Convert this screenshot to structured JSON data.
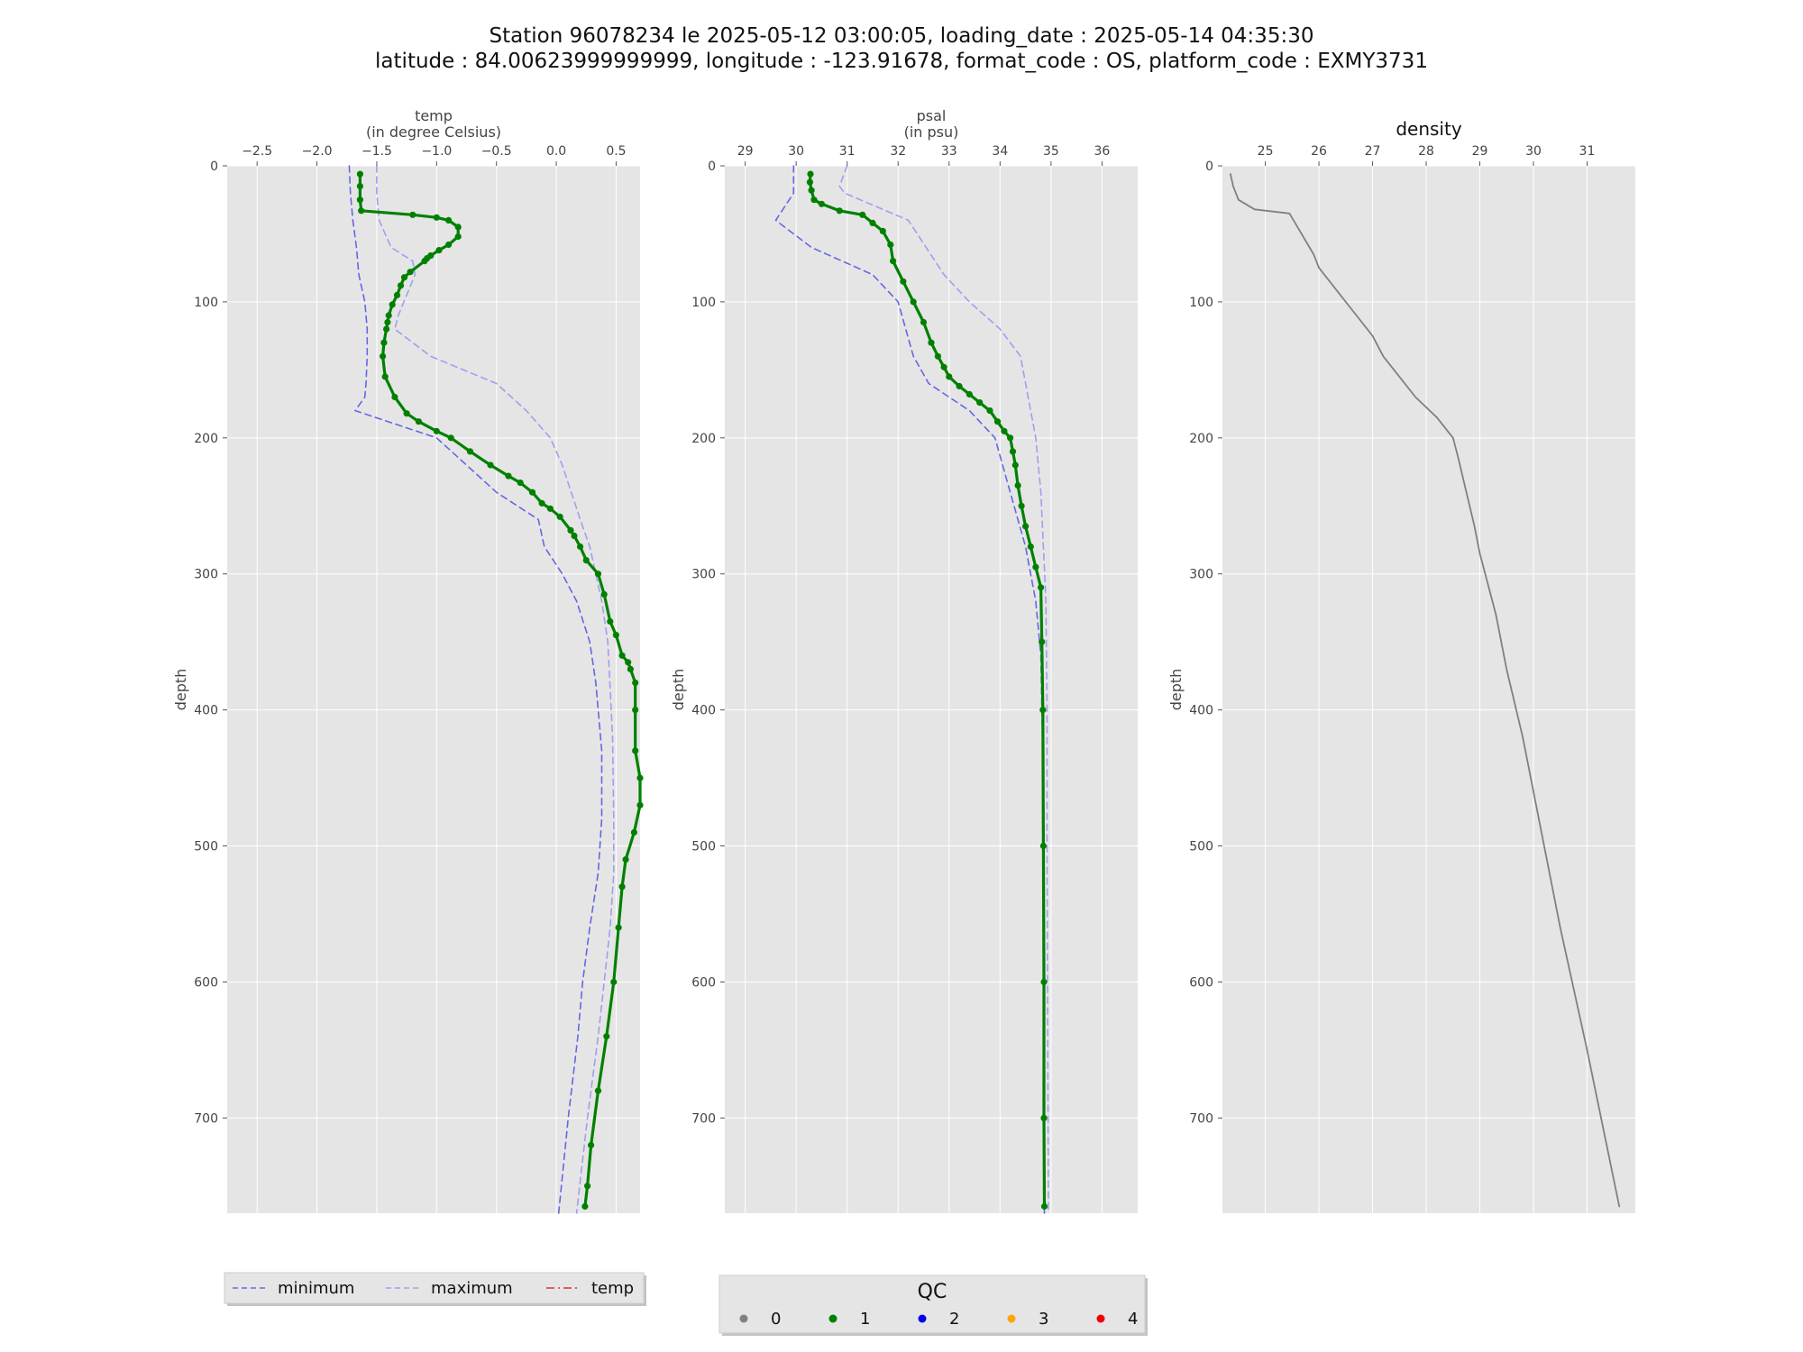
{
  "title": {
    "line1": "Station 96078234 le 2025-05-12 03:00:05, loading_date : 2025-05-14 04:35:30",
    "line2": "latitude : 84.00623999999999, longitude : -123.91678, format_code : OS, platform_code : EXMY3731"
  },
  "colors": {
    "background": "#e5e5e5",
    "grid": "#ffffff",
    "minimum": "#6666e6",
    "maximum": "#9f9ff0",
    "qc1": "#008000",
    "density": "#808080"
  },
  "legend_left": {
    "items": [
      {
        "label": "minimum",
        "color": "#6666e6",
        "style": "dashed"
      },
      {
        "label": "maximum",
        "color": "#9f9ff0",
        "style": "dashed"
      },
      {
        "label": "temp",
        "color": "#e03030",
        "style": "dashdot"
      }
    ]
  },
  "legend_qc": {
    "title": "QC",
    "items": [
      {
        "label": "0",
        "color": "#808080"
      },
      {
        "label": "1",
        "color": "#008000"
      },
      {
        "label": "2",
        "color": "#0000ee"
      },
      {
        "label": "3",
        "color": "#ffa500"
      },
      {
        "label": "4",
        "color": "#ee0000"
      }
    ]
  },
  "chart_data": [
    {
      "type": "line",
      "title": "temp",
      "subtitle": "(in degree Celsius)",
      "xlabel": "temp",
      "ylabel": "depth",
      "xlim": [
        -2.75,
        0.7
      ],
      "ylim": [
        770,
        0
      ],
      "xticks": [
        -2.5,
        -2.0,
        -1.5,
        -1.0,
        -0.5,
        0.0,
        0.5
      ],
      "xtick_labels": [
        "−2.5",
        "−2.0",
        "−1.5",
        "−1.0",
        "−0.5",
        "0.0",
        "0.5"
      ],
      "yticks": [
        0,
        100,
        200,
        300,
        400,
        500,
        600,
        700
      ],
      "grid": true,
      "x_axis_position": "top",
      "series": [
        {
          "name": "minimum",
          "x": [
            -1.73,
            -1.72,
            -1.7,
            -1.67,
            -1.65,
            -1.6,
            -1.58,
            -1.58,
            -1.59,
            -1.6,
            -1.68,
            -1.0,
            -0.5,
            -0.15,
            -0.1,
            0.05,
            0.17,
            0.28,
            0.33,
            0.38,
            0.38,
            0.35,
            0.28,
            0.22,
            0.18,
            0.1,
            0.02
          ],
          "y": [
            0,
            20,
            40,
            60,
            80,
            100,
            120,
            140,
            160,
            170,
            180,
            200,
            240,
            260,
            280,
            300,
            320,
            350,
            380,
            430,
            480,
            520,
            560,
            600,
            640,
            700,
            770
          ]
        },
        {
          "name": "maximum",
          "x": [
            -1.5,
            -1.5,
            -1.48,
            -1.38,
            -1.2,
            -1.18,
            -1.25,
            -1.32,
            -1.35,
            -1.2,
            -1.05,
            -0.5,
            -0.25,
            -0.05,
            0.05,
            0.2,
            0.28,
            0.38,
            0.43,
            0.47,
            0.48,
            0.48,
            0.45,
            0.4,
            0.35,
            0.26,
            0.17
          ],
          "y": [
            0,
            20,
            40,
            60,
            70,
            80,
            95,
            110,
            120,
            130,
            140,
            160,
            180,
            200,
            220,
            260,
            280,
            320,
            350,
            420,
            480,
            520,
            560,
            600,
            640,
            700,
            770
          ]
        },
        {
          "name": "",
          "qc": 1,
          "x": [
            -1.64,
            -1.64,
            -1.64,
            -1.63,
            -1.2,
            -1.0,
            -0.9,
            -0.82,
            -0.82,
            -0.9,
            -0.98,
            -1.05,
            -1.08,
            -1.1,
            -1.22,
            -1.27,
            -1.3,
            -1.33,
            -1.37,
            -1.4,
            -1.41,
            -1.42,
            -1.44,
            -1.45,
            -1.43,
            -1.35,
            -1.25,
            -1.15,
            -1.0,
            -0.88,
            -0.72,
            -0.55,
            -0.4,
            -0.3,
            -0.2,
            -0.12,
            -0.05,
            0.03,
            0.12,
            0.15,
            0.2,
            0.25,
            0.35,
            0.4,
            0.45,
            0.5,
            0.55,
            0.6,
            0.62,
            0.66,
            0.66,
            0.66,
            0.7,
            0.7,
            0.65,
            0.58,
            0.55,
            0.52,
            0.48,
            0.42,
            0.35,
            0.29,
            0.26,
            0.24
          ],
          "y": [
            6,
            15,
            25,
            33,
            36,
            38,
            40,
            45,
            52,
            58,
            62,
            66,
            68,
            70,
            78,
            82,
            88,
            95,
            102,
            110,
            115,
            120,
            130,
            140,
            155,
            170,
            182,
            188,
            195,
            200,
            210,
            220,
            228,
            233,
            240,
            248,
            252,
            258,
            268,
            272,
            280,
            290,
            300,
            315,
            335,
            345,
            360,
            365,
            370,
            380,
            400,
            430,
            450,
            470,
            490,
            510,
            530,
            560,
            600,
            640,
            680,
            720,
            750,
            765
          ]
        },
        {
          "name": "temp",
          "x": [],
          "y": []
        }
      ]
    },
    {
      "type": "line",
      "title": "psal",
      "subtitle": "(in psu)",
      "xlabel": "psal",
      "ylabel": "depth",
      "xlim": [
        28.6,
        36.7
      ],
      "ylim": [
        770,
        0
      ],
      "xticks": [
        29,
        30,
        31,
        32,
        33,
        34,
        35,
        36
      ],
      "xtick_labels": [
        "29",
        "30",
        "31",
        "32",
        "33",
        "34",
        "35",
        "36"
      ],
      "yticks": [
        0,
        100,
        200,
        300,
        400,
        500,
        600,
        700
      ],
      "grid": true,
      "x_axis_position": "top",
      "series": [
        {
          "name": "minimum",
          "x": [
            29.95,
            29.95,
            29.6,
            30.3,
            31.5,
            32.0,
            32.3,
            32.6,
            33.4,
            33.9,
            34.2,
            34.5,
            34.7,
            34.8,
            34.83,
            34.84,
            34.85,
            34.87
          ],
          "y": [
            0,
            20,
            40,
            60,
            80,
            100,
            140,
            160,
            180,
            200,
            240,
            280,
            320,
            360,
            420,
            500,
            600,
            770
          ]
        },
        {
          "name": "maximum",
          "x": [
            31.0,
            30.85,
            30.95,
            32.2,
            32.9,
            33.4,
            34.0,
            34.4,
            34.6,
            34.7,
            34.8,
            34.85,
            34.9,
            34.92,
            34.92,
            34.93,
            34.95
          ],
          "y": [
            0,
            15,
            20,
            40,
            80,
            100,
            120,
            140,
            180,
            200,
            240,
            280,
            320,
            400,
            500,
            600,
            770
          ]
        },
        {
          "name": "",
          "qc": 1,
          "x": [
            30.28,
            30.27,
            30.3,
            30.35,
            30.5,
            30.85,
            31.3,
            31.5,
            31.7,
            31.85,
            31.9,
            32.1,
            32.3,
            32.5,
            32.65,
            32.78,
            32.9,
            33.0,
            33.2,
            33.4,
            33.6,
            33.8,
            33.95,
            34.08,
            34.2,
            34.25,
            34.3,
            34.35,
            34.42,
            34.5,
            34.6,
            34.7,
            34.8,
            34.82,
            34.84,
            34.85,
            34.86,
            34.86,
            34.87
          ],
          "y": [
            6,
            12,
            18,
            25,
            28,
            33,
            36,
            42,
            48,
            58,
            70,
            85,
            100,
            115,
            130,
            140,
            148,
            155,
            162,
            168,
            174,
            180,
            188,
            195,
            200,
            210,
            220,
            235,
            250,
            265,
            280,
            295,
            310,
            350,
            400,
            500,
            600,
            700,
            765
          ]
        }
      ]
    },
    {
      "type": "line",
      "title": "density",
      "xlabel": "density",
      "ylabel": "depth",
      "xlim": [
        24.2,
        31.9
      ],
      "ylim": [
        770,
        0
      ],
      "xticks": [
        25,
        26,
        27,
        28,
        29,
        30,
        31
      ],
      "xtick_labels": [
        "25",
        "26",
        "27",
        "28",
        "29",
        "30",
        "31"
      ],
      "yticks": [
        0,
        100,
        200,
        300,
        400,
        500,
        600,
        700
      ],
      "grid": true,
      "x_axis_position": "top",
      "series": [
        {
          "name": "",
          "qc": 0,
          "x": [
            24.35,
            24.4,
            24.5,
            24.8,
            25.45,
            25.6,
            25.75,
            25.9,
            26.0,
            26.3,
            26.7,
            27.0,
            27.2,
            27.5,
            27.8,
            28.2,
            28.5,
            28.6,
            28.75,
            28.9,
            29.0,
            29.1,
            29.3,
            29.5,
            29.8,
            30.0,
            30.5,
            31.0,
            31.6
          ],
          "y": [
            6,
            15,
            25,
            32,
            35,
            45,
            55,
            65,
            75,
            90,
            110,
            125,
            140,
            155,
            170,
            185,
            200,
            215,
            240,
            265,
            285,
            300,
            330,
            370,
            420,
            460,
            560,
            650,
            765
          ]
        }
      ]
    }
  ]
}
